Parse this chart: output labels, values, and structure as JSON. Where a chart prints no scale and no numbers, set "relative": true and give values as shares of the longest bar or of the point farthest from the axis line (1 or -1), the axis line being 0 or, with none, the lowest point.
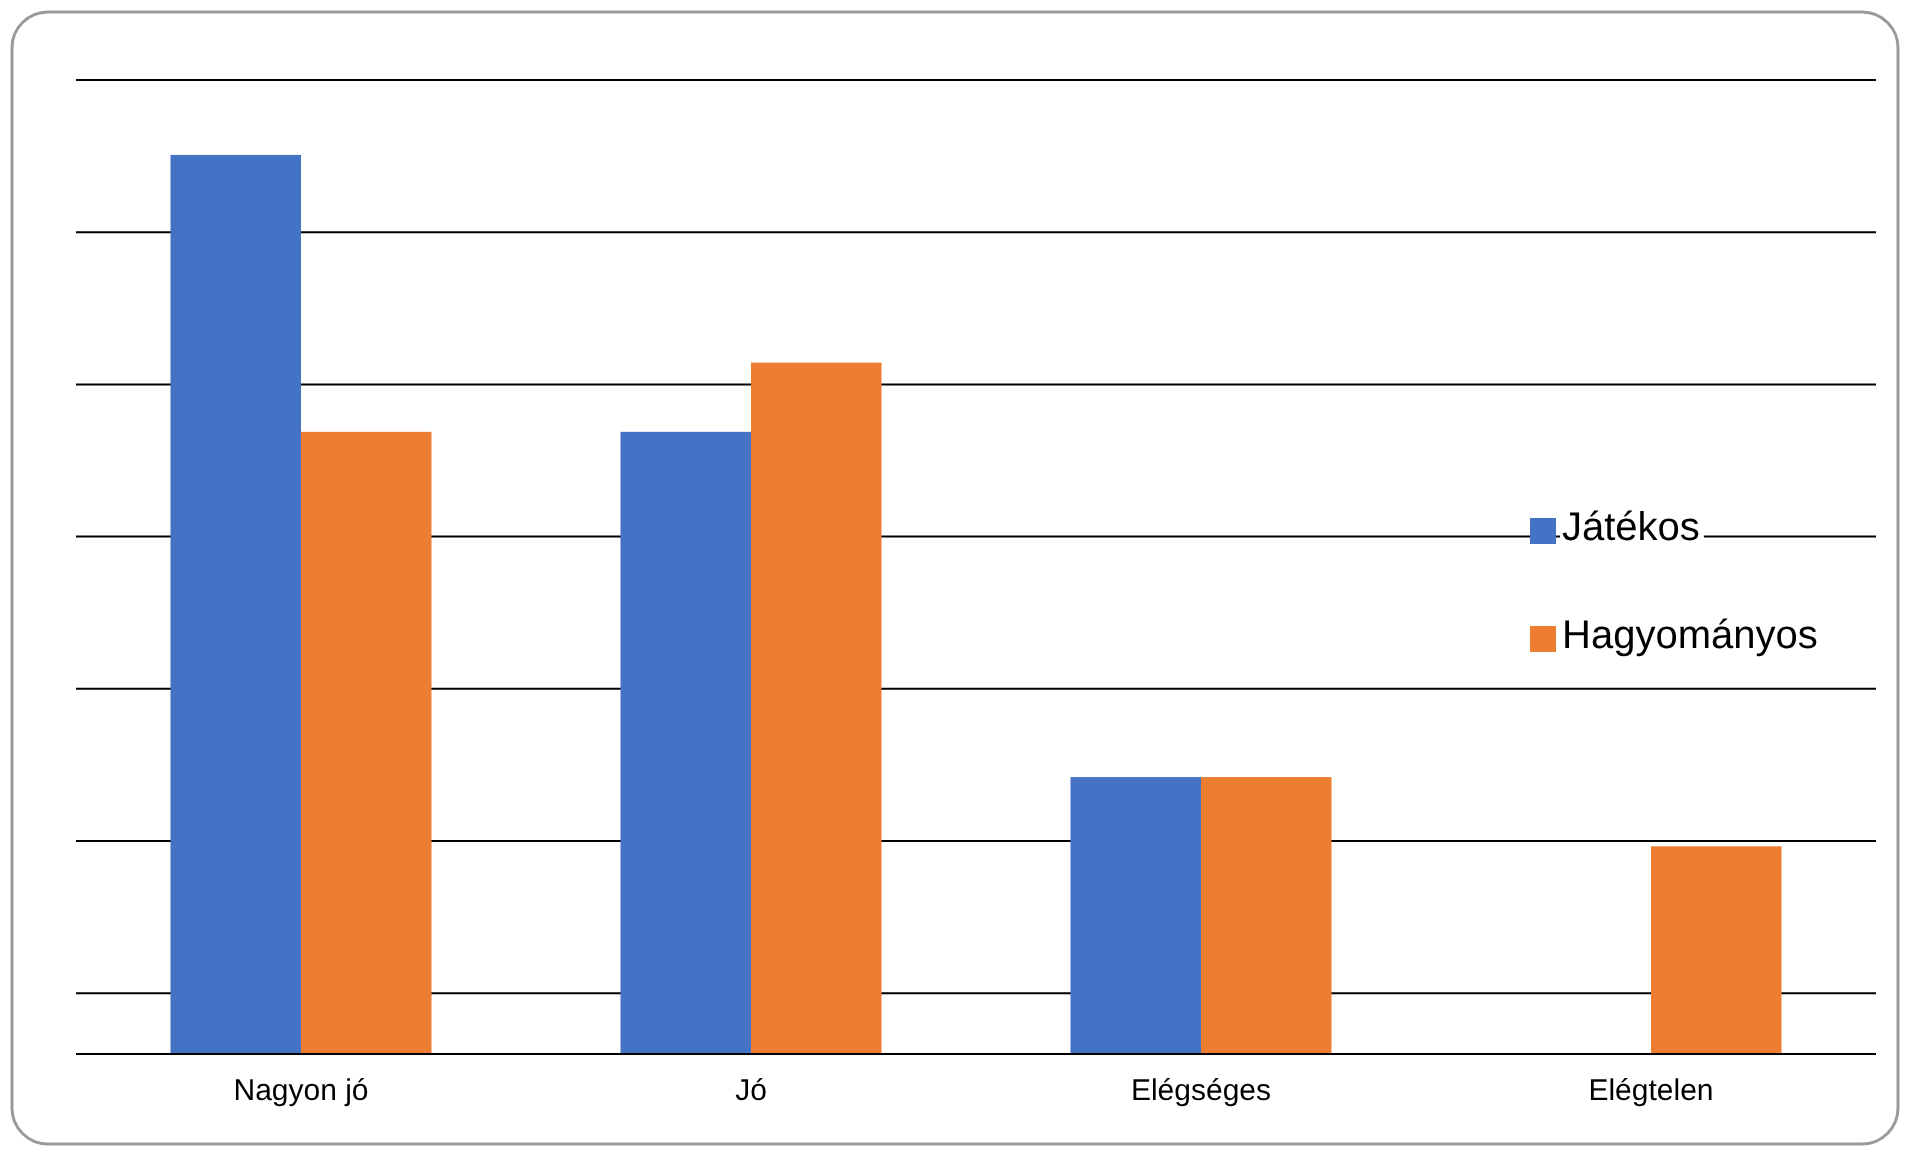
{
  "chart_data": {
    "type": "bar",
    "relative": true,
    "categories": [
      "Nagyon jó",
      "Jó",
      "Elégséges",
      "Elégtelen"
    ],
    "series": [
      {
        "name": "Játékos",
        "color": "#4472c4",
        "values": [
          1,
          0.692,
          0.308,
          0
        ]
      },
      {
        "name": "Hagyományos",
        "color": "#ed7d31",
        "values": [
          0.692,
          0.769,
          0.308,
          0.231
        ]
      }
    ],
    "grid": true,
    "legend": "right"
  }
}
